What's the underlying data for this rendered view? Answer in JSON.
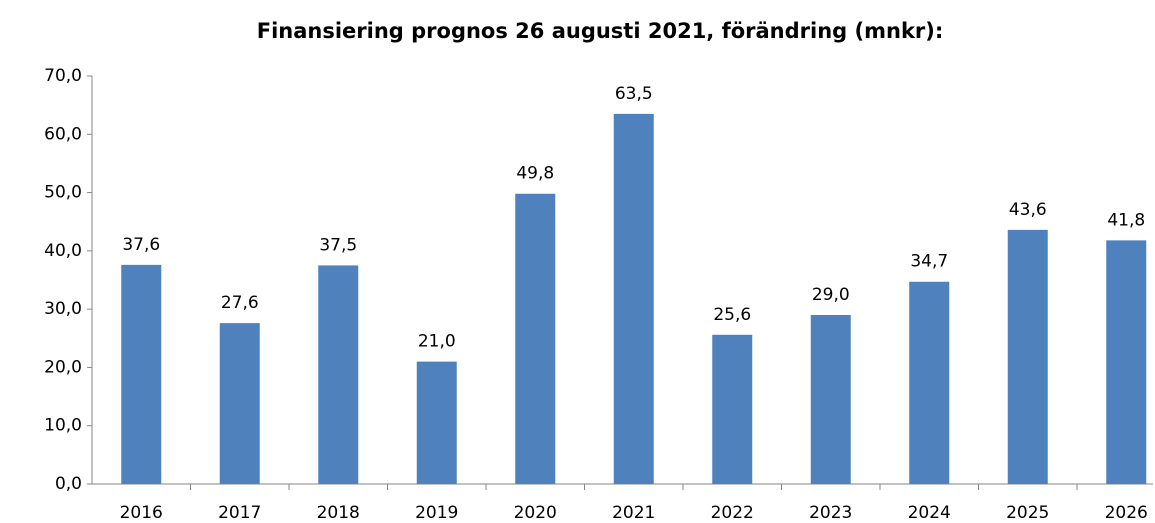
{
  "chart_data": {
    "type": "bar",
    "title": "Finansiering prognos 26 augusti 2021, förändring (mnkr):",
    "categories": [
      "2016",
      "2017",
      "2018",
      "2019",
      "2020",
      "2021",
      "2022",
      "2023",
      "2024",
      "2025",
      "2026"
    ],
    "values": [
      37.6,
      27.6,
      37.5,
      21.0,
      49.8,
      63.5,
      25.6,
      29.0,
      34.7,
      43.6,
      41.8
    ],
    "value_labels": [
      "37,6",
      "27,6",
      "37,5",
      "21,0",
      "49,8",
      "63,5",
      "25,6",
      "29,0",
      "34,7",
      "43,6",
      "41,8"
    ],
    "color": "#4f81bd",
    "ylim": [
      0,
      70
    ],
    "yticks": [
      {
        "value": 0,
        "label": "0,0"
      },
      {
        "value": 10,
        "label": "10,0"
      },
      {
        "value": 20,
        "label": "20,0"
      },
      {
        "value": 30,
        "label": "30,0"
      },
      {
        "value": 40,
        "label": "40,0"
      },
      {
        "value": 50,
        "label": "50,0"
      },
      {
        "value": 60,
        "label": "60,0"
      },
      {
        "value": 70,
        "label": "70,0"
      }
    ],
    "grid": false
  }
}
